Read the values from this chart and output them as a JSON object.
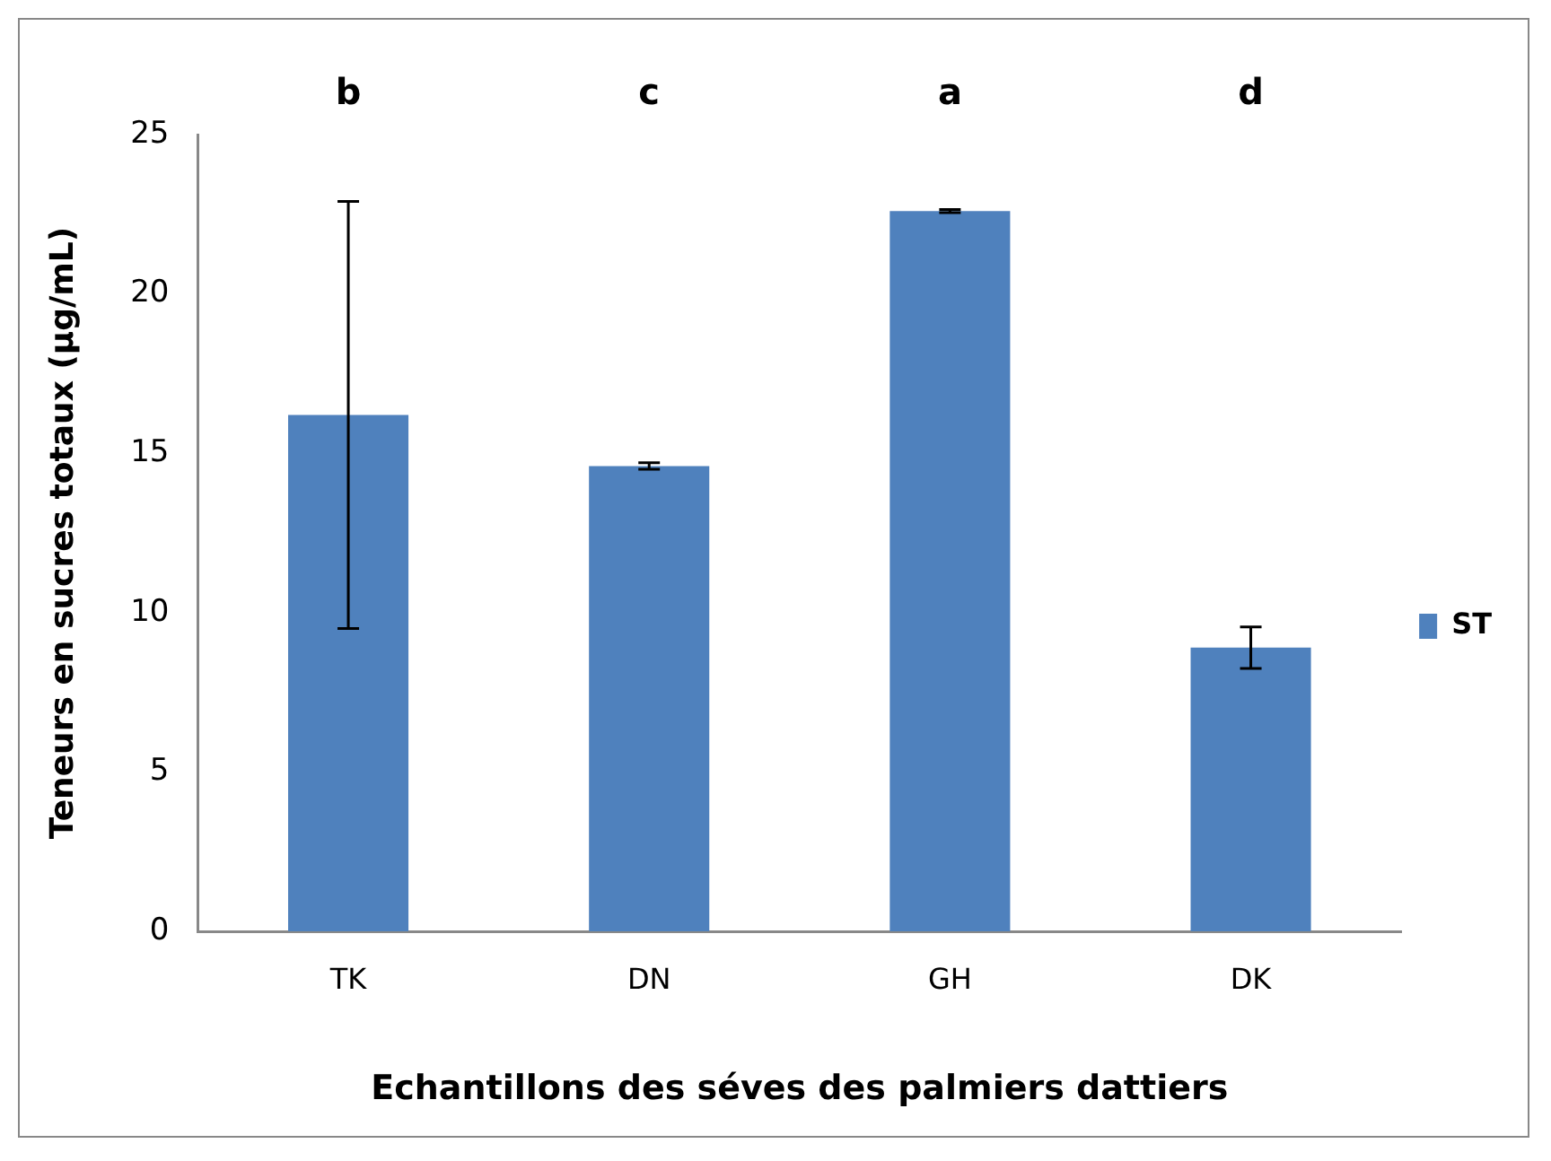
{
  "chart_data": {
    "type": "bar",
    "xlabel": "Echantillons des séves des palmiers dattiers",
    "ylabel": "Teneurs en sucres totaux (µg/mL)",
    "categories": [
      "TK",
      "DN",
      "GH",
      "DK"
    ],
    "series": [
      {
        "name": "ST",
        "color": "#4f81bd",
        "values": [
          16.2,
          14.6,
          22.6,
          8.9
        ],
        "errors": [
          6.7,
          0.1,
          0.05,
          0.65
        ]
      }
    ],
    "ylim": [
      0,
      25
    ],
    "yticks": [
      0,
      5,
      10,
      15,
      20,
      25
    ],
    "grid": false,
    "legend": "right",
    "annotations": [
      "b",
      "c",
      "a",
      "d"
    ]
  }
}
